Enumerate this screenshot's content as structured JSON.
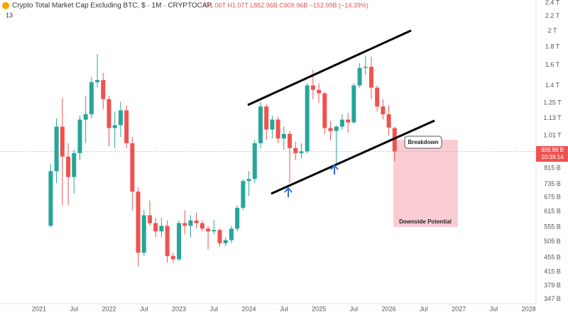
{
  "chart_data": {
    "type": "candlestick",
    "title": "Crypto Total Market Cap Excluding BTC, $ · 1M · CRYPTOCAP",
    "ohlc_text": "O1.06T H1.07T L852.96B C909.96B −152.99B (−14.39%)",
    "indicator_count": "13",
    "up_color": "#26a69a",
    "down_color": "#ef5350",
    "scale": "log",
    "grid": false,
    "ylim": [
      337,
      2445
    ],
    "yticks": [
      {
        "value": 2400,
        "label": "2.4 T"
      },
      {
        "value": 2200,
        "label": "2.2 T"
      },
      {
        "value": 2000,
        "label": "2 T"
      },
      {
        "value": 1800,
        "label": "1.8 T"
      },
      {
        "value": 1600,
        "label": "1.6 T"
      },
      {
        "value": 1400,
        "label": "1.4 T"
      },
      {
        "value": 1250,
        "label": "1.25 T"
      },
      {
        "value": 1130,
        "label": "1.13 T"
      },
      {
        "value": 1010,
        "label": "1.01 T"
      },
      {
        "value": 815,
        "label": "815 B"
      },
      {
        "value": 735,
        "label": "735 B"
      },
      {
        "value": 675,
        "label": "675 B"
      },
      {
        "value": 615,
        "label": "615 B"
      },
      {
        "value": 555,
        "label": "555 B"
      },
      {
        "value": 505,
        "label": "505 B"
      },
      {
        "value": 455,
        "label": "455 B"
      },
      {
        "value": 415,
        "label": "415 B"
      },
      {
        "value": 379,
        "label": "379 B"
      },
      {
        "value": 347,
        "label": "347 B"
      }
    ],
    "xticks": [
      {
        "value": "2021-01",
        "label": "2021"
      },
      {
        "value": "2021-07",
        "label": "Jul"
      },
      {
        "value": "2022-01",
        "label": "2022"
      },
      {
        "value": "2022-07",
        "label": "Jul"
      },
      {
        "value": "2023-01",
        "label": "2023"
      },
      {
        "value": "2023-07",
        "label": "Jul"
      },
      {
        "value": "2024-01",
        "label": "2024"
      },
      {
        "value": "2024-07",
        "label": "Jul"
      },
      {
        "value": "2025-01",
        "label": "2025"
      },
      {
        "value": "2025-07",
        "label": "Jul"
      },
      {
        "value": "2026-01",
        "label": "2026"
      },
      {
        "value": "2026-07",
        "label": "Jul"
      },
      {
        "value": "2027-01",
        "label": "2027"
      },
      {
        "value": "2027-07",
        "label": "Jul"
      },
      {
        "value": "2028-01",
        "label": "2028"
      }
    ],
    "x": [
      "2021-03",
      "2021-04",
      "2021-05",
      "2021-06",
      "2021-07",
      "2021-08",
      "2021-09",
      "2021-10",
      "2021-11",
      "2021-12",
      "2022-01",
      "2022-02",
      "2022-03",
      "2022-04",
      "2022-05",
      "2022-06",
      "2022-07",
      "2022-08",
      "2022-09",
      "2022-10",
      "2022-11",
      "2022-12",
      "2023-01",
      "2023-02",
      "2023-03",
      "2023-04",
      "2023-05",
      "2023-06",
      "2023-07",
      "2023-08",
      "2023-09",
      "2023-10",
      "2023-11",
      "2023-12",
      "2024-01",
      "2024-02",
      "2024-03",
      "2024-04",
      "2024-05",
      "2024-06",
      "2024-07",
      "2024-08",
      "2024-09",
      "2024-10",
      "2024-11",
      "2024-12",
      "2025-01",
      "2025-02",
      "2025-03",
      "2025-04",
      "2025-05",
      "2025-06",
      "2025-07",
      "2025-08",
      "2025-09",
      "2025-10",
      "2025-11",
      "2025-12",
      "2026-01",
      "2026-02"
    ],
    "open": [
      560,
      800,
      1070,
      880,
      770,
      900,
      1120,
      1160,
      1430,
      1450,
      1280,
      1060,
      1080,
      1190,
      960,
      700,
      470,
      600,
      570,
      540,
      560,
      460,
      450,
      570,
      560,
      580,
      570,
      550,
      540,
      545,
      500,
      510,
      550,
      630,
      750,
      760,
      960,
      1220,
      1050,
      1120,
      990,
      1020,
      930,
      900,
      910,
      1400,
      1360,
      1330,
      1060,
      1040,
      1070,
      1120,
      1100,
      1400,
      1570,
      1580,
      1380,
      1220,
      1160,
      1060
    ],
    "high": [
      840,
      1130,
      1290,
      960,
      920,
      1150,
      1310,
      1480,
      1720,
      1520,
      1310,
      1180,
      1260,
      1230,
      1000,
      720,
      620,
      660,
      590,
      590,
      580,
      470,
      580,
      620,
      600,
      610,
      580,
      560,
      580,
      550,
      520,
      560,
      640,
      760,
      800,
      980,
      1260,
      1240,
      1150,
      1140,
      1070,
      1040,
      970,
      960,
      1420,
      1550,
      1420,
      1340,
      1110,
      1080,
      1160,
      1170,
      1420,
      1620,
      1700,
      1690,
      1400,
      1280,
      1230,
      1070
    ],
    "low": [
      555,
      740,
      640,
      640,
      690,
      860,
      960,
      1130,
      1380,
      1200,
      940,
      930,
      1000,
      930,
      620,
      430,
      460,
      560,
      520,
      520,
      440,
      440,
      445,
      530,
      520,
      550,
      540,
      480,
      530,
      490,
      490,
      500,
      540,
      620,
      680,
      740,
      930,
      980,
      990,
      960,
      920,
      740,
      860,
      870,
      900,
      1280,
      1250,
      1020,
      980,
      830,
      1050,
      1030,
      1090,
      1380,
      1500,
      1280,
      1180,
      1120,
      1010,
      852.96
    ],
    "close": [
      800,
      1070,
      880,
      770,
      900,
      1120,
      1160,
      1430,
      1450,
      1280,
      1060,
      1080,
      1190,
      960,
      700,
      470,
      600,
      570,
      540,
      560,
      460,
      450,
      570,
      560,
      580,
      570,
      550,
      540,
      545,
      500,
      510,
      550,
      630,
      750,
      760,
      960,
      1220,
      1050,
      1120,
      990,
      1020,
      930,
      900,
      910,
      1400,
      1360,
      1330,
      1060,
      1040,
      1070,
      1120,
      1100,
      1400,
      1570,
      1580,
      1380,
      1220,
      1160,
      1062.95,
      909.96
    ],
    "price_label": "909.96 B",
    "countdown": "10:39:14",
    "annotations": [
      "Breakdown",
      "Downside Potential"
    ]
  }
}
